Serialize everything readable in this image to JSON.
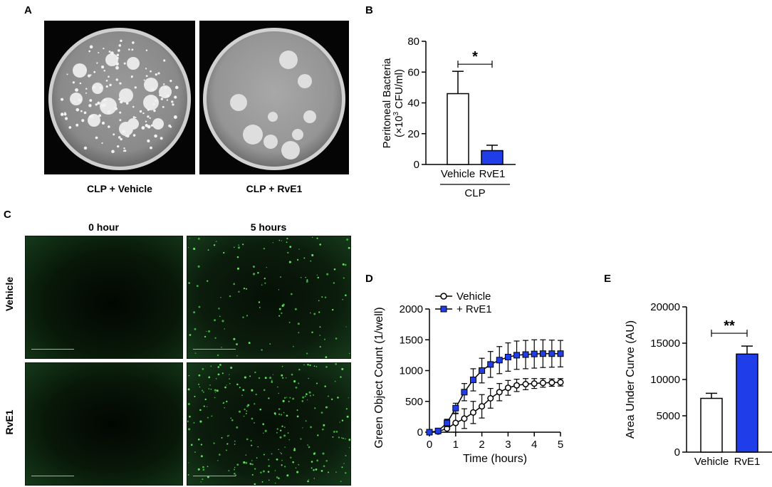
{
  "panel_a": {
    "letter": "A",
    "captions": [
      "CLP + Vehicle",
      "CLP + RvE1"
    ]
  },
  "panel_c": {
    "letter": "C",
    "column_headers": [
      "0 hour",
      "5 hours"
    ],
    "row_labels": [
      "Vehicle",
      "RvE1"
    ]
  },
  "chart_data": [
    {
      "panel": "B",
      "type": "bar",
      "categories": [
        "Vehicle",
        "RvE1"
      ],
      "values": [
        46,
        9
      ],
      "errors": [
        14.5,
        3.5
      ],
      "colors": [
        "#ffffff",
        "#1f3de8"
      ],
      "ylabel_line1": "Peritoneal Bacteria",
      "ylabel_line2_pre": "(×10",
      "ylabel_line2_sup": "3",
      "ylabel_line2_post": " CFU/ml)",
      "ylim": [
        0,
        80
      ],
      "yticks": [
        0,
        20,
        40,
        60,
        80
      ],
      "group_label": "CLP",
      "significance": "*"
    },
    {
      "panel": "D",
      "type": "line",
      "xlabel": "Time (hours)",
      "ylabel": "Green Object Count (1/well)",
      "xlim": [
        0,
        5
      ],
      "ylim": [
        0,
        2000
      ],
      "xticks": [
        0,
        1,
        2,
        3,
        4,
        5
      ],
      "yticks": [
        0,
        500,
        1000,
        1500,
        2000
      ],
      "x": [
        0,
        0.33,
        0.67,
        1,
        1.33,
        1.67,
        2,
        2.33,
        2.67,
        3,
        3.33,
        3.67,
        4,
        4.33,
        4.67,
        5
      ],
      "series": [
        {
          "name": "Vehicle",
          "marker": "circle-open",
          "values": [
            0,
            10,
            60,
            150,
            220,
            320,
            420,
            550,
            650,
            720,
            760,
            780,
            790,
            800,
            805,
            810
          ],
          "errors": [
            0,
            10,
            60,
            150,
            160,
            180,
            190,
            160,
            140,
            120,
            100,
            90,
            80,
            70,
            60,
            60
          ]
        },
        {
          "name": "+ RvE1",
          "marker": "square-filled",
          "color": "#1f3de8",
          "values": [
            0,
            20,
            150,
            390,
            650,
            850,
            1000,
            1100,
            1170,
            1220,
            1250,
            1260,
            1270,
            1275,
            1275,
            1275
          ],
          "errors": [
            0,
            20,
            60,
            80,
            140,
            180,
            200,
            210,
            220,
            230,
            230,
            230,
            230,
            225,
            220,
            215
          ]
        }
      ]
    },
    {
      "panel": "E",
      "type": "bar",
      "categories": [
        "Vehicle",
        "RvE1"
      ],
      "values": [
        7400,
        13500
      ],
      "errors": [
        700,
        1100
      ],
      "colors": [
        "#ffffff",
        "#1f3de8"
      ],
      "ylabel": "Area Under Curve (AU)",
      "ylim": [
        0,
        20000
      ],
      "yticks": [
        0,
        5000,
        10000,
        15000,
        20000
      ],
      "significance": "**"
    }
  ]
}
